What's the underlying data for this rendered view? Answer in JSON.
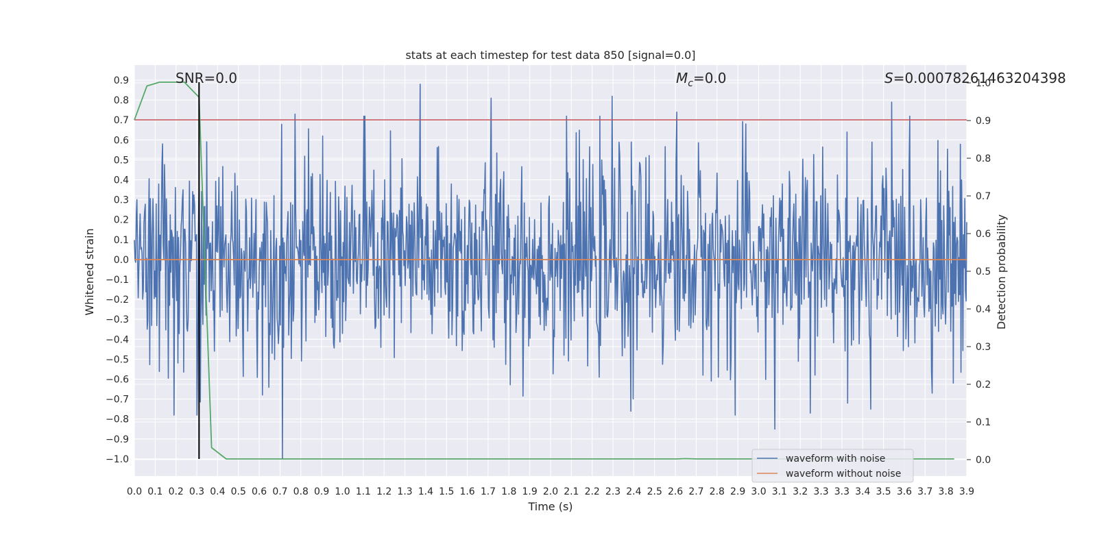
{
  "chart_data": {
    "type": "line",
    "title": "stats at each timestep for test data 850 [signal=0.0]",
    "xlabel": "Time (s)",
    "ylabel": "Whitened strain",
    "y2label": "Detection probability",
    "xlim": [
      0.0,
      3.99
    ],
    "ylim": [
      -1.09,
      0.98
    ],
    "y2lim": [
      -0.05,
      1.0
    ],
    "x_ticks": [
      "0.0",
      "0.1",
      "0.2",
      "0.3",
      "0.4",
      "0.5",
      "0.6",
      "0.7",
      "0.8",
      "0.9",
      "1.0",
      "1.1",
      "1.2",
      "1.3",
      "1.4",
      "1.5",
      "1.6",
      "1.7",
      "1.8",
      "1.9",
      "2.0",
      "2.1",
      "2.2",
      "2.3",
      "2.4",
      "2.5",
      "2.6",
      "2.7",
      "2.8",
      "2.9",
      "3.0",
      "3.1",
      "3.2",
      "3.3",
      "3.3",
      "3.4",
      "3.5",
      "3.6",
      "3.7",
      "3.8",
      "3.9"
    ],
    "y_ticks": [
      "0.9",
      "0.8",
      "0.7",
      "0.6",
      "0.5",
      "0.4",
      "0.3",
      "0.2",
      "0.1",
      "0.0",
      "−0.1",
      "−0.2",
      "−0.3",
      "−0.4",
      "−0.5",
      "−0.6",
      "−0.7",
      "−0.8",
      "−0.9",
      "−1.0"
    ],
    "y2_ticks": [
      "1.0",
      "0.9",
      "0.8",
      "0.7",
      "0.6",
      "0.5",
      "0.4",
      "0.3",
      "0.2",
      "0.1",
      "0.0"
    ],
    "annotations": {
      "snr": "SNR=0.0",
      "mc_prefix": "M",
      "mc_sub": "c",
      "mc_value": "=0.0",
      "s_prefix": "S",
      "s_value": "=0.00078261463204398",
      "s_full": "S=0.00078261463204398"
    },
    "grid": true,
    "legend_position": "lower right",
    "legend": [
      {
        "name": "waveform with noise",
        "color": "#4c72b0"
      },
      {
        "name": "waveform without noise",
        "color": "#dd8452"
      }
    ],
    "series": [
      {
        "name": "waveform with noise",
        "color": "#4c72b0",
        "axis": "left",
        "envelope": "noise",
        "sample_count": 4000,
        "notable_peaks": [
          {
            "x": 0.71,
            "y": 0.81
          },
          {
            "x": 0.77,
            "y": 0.73
          },
          {
            "x": 1.37,
            "y": 0.88
          },
          {
            "x": 1.71,
            "y": 0.81
          },
          {
            "x": 2.29,
            "y": 0.82
          },
          {
            "x": 3.63,
            "y": 0.79
          },
          {
            "x": 2.6,
            "y": 0.74
          },
          {
            "x": 1.1,
            "y": 0.72
          }
        ],
        "notable_troughs": [
          {
            "x": 0.71,
            "y": -1.0
          },
          {
            "x": 0.3,
            "y": -0.78
          },
          {
            "x": 0.19,
            "y": -0.78
          },
          {
            "x": 3.07,
            "y": -0.85
          },
          {
            "x": 2.88,
            "y": -0.78
          },
          {
            "x": 3.24,
            "y": -0.77
          },
          {
            "x": 2.38,
            "y": -0.76
          },
          {
            "x": 3.53,
            "y": -0.75
          }
        ]
      },
      {
        "name": "waveform without noise",
        "color": "#dd8452",
        "axis": "left",
        "x": [
          0.0,
          3.99
        ],
        "y": [
          0.0,
          0.0
        ]
      },
      {
        "name": "detection probability",
        "color": "#55a868",
        "axis": "right",
        "x": [
          0.0,
          0.06,
          0.12,
          0.18,
          0.24,
          0.31,
          0.37,
          0.44,
          0.5,
          2.6,
          2.64,
          2.7,
          3.93
        ],
        "y": [
          0.9,
          0.99,
          1.0,
          1.0,
          1.0,
          0.96,
          0.03,
          0.0,
          0.0,
          0.0,
          0.001,
          0.0,
          0.0
        ]
      },
      {
        "name": "threshold",
        "color": "#c44e52",
        "axis": "right",
        "x": [
          0.0,
          3.99
        ],
        "y": [
          0.9,
          0.9
        ]
      },
      {
        "name": "detection time",
        "color": "#000000",
        "type": "vline",
        "x": 0.31,
        "y2_range": [
          0.0,
          1.0
        ]
      }
    ]
  }
}
